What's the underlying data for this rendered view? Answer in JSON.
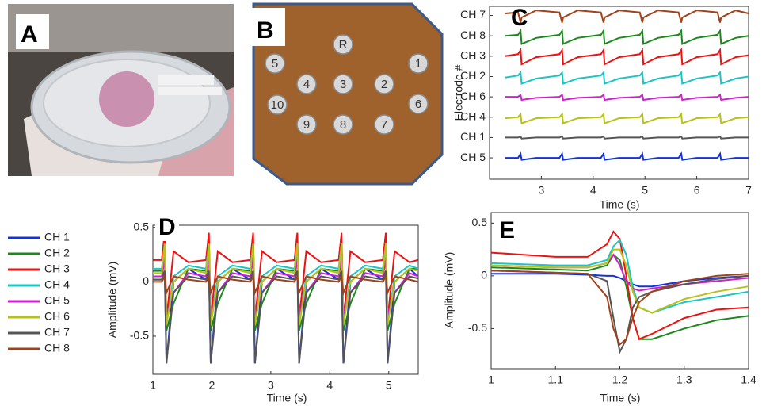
{
  "panel_labels": [
    "A",
    "B",
    "C",
    "D",
    "E"
  ],
  "electrodes": [
    "R",
    "5",
    "1",
    "4",
    "3",
    "2",
    "10",
    "6",
    "9",
    "8",
    "7"
  ],
  "chart_data": [
    {
      "type": "line",
      "xlabel": "Time (s)",
      "ylabel": "Electrode #",
      "x": [
        2.3,
        2.55,
        2.6,
        2.62,
        2.9,
        3.35,
        3.4,
        3.42,
        3.7,
        4.15,
        4.2,
        4.22,
        4.5,
        4.9,
        4.95,
        4.97,
        5.25,
        5.65,
        5.7,
        5.72,
        6.0,
        6.4,
        6.45,
        6.47,
        6.75,
        7.0
      ],
      "xlim": [
        2,
        7
      ],
      "xticks": [
        3,
        4,
        5,
        6,
        7
      ],
      "ylim": [
        -1.05,
        7.45
      ],
      "yticks": [
        {
          "value": 7,
          "label": "CH 7"
        },
        {
          "value": 6,
          "label": "CH 8"
        },
        {
          "value": 5,
          "label": "CH 3"
        },
        {
          "value": 4,
          "label": "CH 2"
        },
        {
          "value": 3,
          "label": "CH 6"
        },
        {
          "value": 2,
          "label": "CH 4"
        },
        {
          "value": 1,
          "label": "CH 1"
        },
        {
          "value": 0,
          "label": "CH 5"
        }
      ],
      "series": [
        {
          "color": "#a0421a",
          "values": [
            7.1,
            7.15,
            6.65,
            6.9,
            7.25,
            7.15,
            6.65,
            6.9,
            7.25,
            7.15,
            6.65,
            6.9,
            7.25,
            7.15,
            6.65,
            6.9,
            7.25,
            7.15,
            6.65,
            6.9,
            7.25,
            7.15,
            6.65,
            6.9,
            7.25,
            7.1
          ]
        },
        {
          "color": "#1a8a1a",
          "values": [
            6.0,
            6.05,
            6.25,
            5.6,
            5.9,
            6.05,
            6.25,
            5.6,
            5.9,
            6.05,
            6.25,
            5.6,
            5.9,
            6.05,
            6.25,
            5.6,
            5.9,
            6.05,
            6.25,
            5.6,
            5.9,
            6.05,
            6.25,
            5.6,
            5.9,
            6.0
          ]
        },
        {
          "color": "#ee1111",
          "values": [
            5.0,
            5.1,
            5.3,
            4.6,
            4.95,
            5.1,
            5.3,
            4.6,
            4.95,
            5.1,
            5.3,
            4.6,
            4.95,
            5.1,
            5.3,
            4.6,
            4.95,
            5.1,
            5.3,
            4.6,
            4.95,
            5.1,
            5.3,
            4.6,
            4.95,
            5.05
          ]
        },
        {
          "color": "#1cc4c4",
          "values": [
            3.95,
            4.05,
            4.2,
            3.65,
            3.9,
            4.05,
            4.2,
            3.65,
            3.9,
            4.05,
            4.2,
            3.65,
            3.9,
            4.05,
            4.2,
            3.65,
            3.9,
            4.05,
            4.2,
            3.65,
            3.9,
            4.05,
            4.2,
            3.65,
            3.9,
            4.0
          ]
        },
        {
          "color": "#cc22cc",
          "values": [
            3.0,
            3.0,
            3.1,
            2.85,
            2.95,
            3.0,
            3.1,
            2.85,
            2.95,
            3.0,
            3.1,
            2.85,
            2.95,
            3.0,
            3.1,
            2.85,
            2.95,
            3.0,
            3.1,
            2.85,
            2.95,
            3.0,
            3.1,
            2.85,
            2.95,
            3.0
          ]
        },
        {
          "color": "#b8c218",
          "values": [
            1.95,
            2.0,
            2.15,
            1.7,
            1.95,
            2.0,
            2.15,
            1.7,
            1.95,
            2.0,
            2.15,
            1.7,
            1.95,
            2.0,
            2.15,
            1.7,
            1.95,
            2.0,
            2.15,
            1.7,
            1.95,
            2.0,
            2.15,
            1.7,
            1.95,
            2.0
          ]
        },
        {
          "color": "#555555",
          "values": [
            1.0,
            1.0,
            1.05,
            0.95,
            1.0,
            1.0,
            1.05,
            0.95,
            1.0,
            1.0,
            1.05,
            0.95,
            1.0,
            1.0,
            1.05,
            0.95,
            1.0,
            1.0,
            1.05,
            0.95,
            1.0,
            1.0,
            1.05,
            0.95,
            1.0,
            1.0
          ]
        },
        {
          "color": "#1133dd",
          "values": [
            0.0,
            0.0,
            0.2,
            -0.1,
            0.0,
            0.0,
            0.2,
            -0.1,
            0.0,
            0.0,
            0.2,
            -0.1,
            0.0,
            0.0,
            0.2,
            -0.1,
            0.0,
            0.0,
            0.2,
            -0.1,
            0.0,
            0.0,
            0.2,
            -0.1,
            0.0,
            0.0
          ]
        }
      ]
    },
    {
      "type": "line",
      "xlabel": "Time (s)",
      "ylabel": "Amplitude (mV)",
      "x": [
        1.0,
        1.15,
        1.2,
        1.23,
        1.35,
        1.6,
        1.9,
        1.95,
        1.98,
        2.1,
        2.35,
        2.65,
        2.7,
        2.73,
        2.85,
        3.1,
        3.4,
        3.45,
        3.48,
        3.6,
        3.85,
        4.15,
        4.2,
        4.23,
        4.35,
        4.6,
        4.9,
        4.95,
        4.98,
        5.1,
        5.35,
        5.5
      ],
      "xlim": [
        1,
        5.5
      ],
      "xticks": [
        1,
        2,
        3,
        4,
        5
      ],
      "ylim": [
        -0.85,
        0.52
      ],
      "yticks": [
        -0.5,
        0,
        0.5
      ],
      "series": [
        {
          "name": "CH 1",
          "color": "#1133dd",
          "values": [
            0.02,
            0.02,
            0.1,
            -0.75,
            0.0,
            0.12,
            0.02,
            0.1,
            -0.75,
            0.0,
            0.12,
            0.02,
            0.1,
            -0.75,
            0.0,
            0.12,
            0.02,
            0.1,
            -0.75,
            0.0,
            0.12,
            0.02,
            0.1,
            -0.75,
            0.0,
            0.12,
            0.02,
            0.1,
            -0.75,
            0.0,
            0.12,
            0.05
          ]
        },
        {
          "name": "CH 2",
          "color": "#1a8a1a",
          "values": [
            0.1,
            0.1,
            0.3,
            -0.45,
            -0.2,
            0.12,
            0.1,
            0.3,
            -0.45,
            -0.2,
            0.12,
            0.1,
            0.3,
            -0.45,
            -0.2,
            0.12,
            0.1,
            0.3,
            -0.45,
            -0.2,
            0.12,
            0.1,
            0.3,
            -0.45,
            -0.2,
            0.12,
            0.1,
            0.3,
            -0.45,
            -0.2,
            0.12,
            0.12
          ]
        },
        {
          "name": "CH 3",
          "color": "#ee1111",
          "values": [
            0.2,
            0.2,
            0.45,
            -0.35,
            0.28,
            0.18,
            0.2,
            0.45,
            -0.35,
            0.28,
            0.18,
            0.2,
            0.45,
            -0.35,
            0.28,
            0.18,
            0.2,
            0.45,
            -0.35,
            0.28,
            0.18,
            0.2,
            0.45,
            -0.35,
            0.28,
            0.18,
            0.2,
            0.45,
            -0.35,
            0.28,
            0.18,
            0.2
          ]
        },
        {
          "name": "CH 4",
          "color": "#1cc4c4",
          "values": [
            0.12,
            0.12,
            0.35,
            -0.4,
            0.05,
            0.15,
            0.12,
            0.35,
            -0.4,
            0.05,
            0.15,
            0.12,
            0.35,
            -0.4,
            0.05,
            0.15,
            0.12,
            0.35,
            -0.4,
            0.05,
            0.15,
            0.12,
            0.35,
            -0.4,
            0.05,
            0.15,
            0.12,
            0.35,
            -0.4,
            0.05,
            0.15,
            0.12
          ]
        },
        {
          "name": "CH 5",
          "color": "#cc22cc",
          "values": [
            0.05,
            0.05,
            0.2,
            -0.3,
            -0.1,
            0.08,
            0.05,
            0.2,
            -0.3,
            -0.1,
            0.08,
            0.05,
            0.2,
            -0.3,
            -0.1,
            0.08,
            0.05,
            0.2,
            -0.3,
            -0.1,
            0.08,
            0.05,
            0.2,
            -0.3,
            -0.1,
            0.08,
            0.05,
            0.2,
            -0.3,
            -0.1,
            0.08,
            0.05
          ]
        },
        {
          "name": "CH 6",
          "color": "#b8c218",
          "values": [
            0.08,
            0.08,
            0.35,
            -0.4,
            0.0,
            0.12,
            0.08,
            0.35,
            -0.4,
            0.0,
            0.12,
            0.08,
            0.35,
            -0.4,
            0.0,
            0.12,
            0.08,
            0.35,
            -0.4,
            0.0,
            0.12,
            0.08,
            0.35,
            -0.4,
            0.0,
            0.12,
            0.08,
            0.35,
            -0.4,
            0.0,
            0.12,
            0.1
          ]
        },
        {
          "name": "CH 7",
          "color": "#555555",
          "values": [
            0.02,
            0.02,
            0.1,
            -0.75,
            -0.1,
            0.05,
            0.02,
            0.1,
            -0.75,
            -0.1,
            0.05,
            0.02,
            0.1,
            -0.75,
            -0.1,
            0.05,
            0.02,
            0.1,
            -0.75,
            -0.1,
            0.05,
            0.02,
            0.1,
            -0.75,
            -0.1,
            0.05,
            0.02,
            0.1,
            -0.75,
            -0.1,
            0.05,
            0.03
          ]
        },
        {
          "name": "CH 8",
          "color": "#a0421a",
          "values": [
            0.0,
            0.0,
            0.05,
            -0.1,
            0.05,
            0.02,
            0.0,
            0.05,
            -0.1,
            0.05,
            0.02,
            0.0,
            0.05,
            -0.1,
            0.05,
            0.02,
            0.0,
            0.05,
            -0.1,
            0.05,
            0.02,
            0.0,
            0.05,
            -0.1,
            0.05,
            0.02,
            0.0,
            0.05,
            -0.1,
            0.05,
            0.02,
            0.0
          ]
        }
      ]
    },
    {
      "type": "line",
      "xlabel": "Time (s)",
      "ylabel": "Amplitude (mV)",
      "x": [
        1,
        1.05,
        1.1,
        1.15,
        1.18,
        1.19,
        1.2,
        1.21,
        1.22,
        1.23,
        1.25,
        1.3,
        1.35,
        1.4
      ],
      "xlim": [
        1,
        1.4
      ],
      "xticks": [
        1,
        1.1,
        1.2,
        1.3,
        1.4
      ],
      "ylim": [
        -0.88,
        0.6
      ],
      "yticks": [
        -0.5,
        0,
        0.5
      ],
      "series": [
        {
          "color": "#1133dd",
          "values": [
            0.02,
            0.02,
            0.02,
            0.01,
            0,
            0,
            -0.02,
            -0.05,
            -0.08,
            -0.1,
            -0.1,
            -0.05,
            -0.02,
            0
          ]
        },
        {
          "color": "#1a8a1a",
          "values": [
            0.08,
            0.07,
            0.06,
            0.05,
            0.1,
            0.2,
            0.15,
            -0.1,
            -0.4,
            -0.6,
            -0.6,
            -0.5,
            -0.42,
            -0.38
          ]
        },
        {
          "color": "#ee1111",
          "values": [
            0.22,
            0.2,
            0.18,
            0.18,
            0.3,
            0.42,
            0.35,
            0,
            -0.4,
            -0.6,
            -0.55,
            -0.4,
            -0.32,
            -0.3
          ]
        },
        {
          "color": "#1cc4c4",
          "values": [
            0.12,
            0.11,
            0.1,
            0.1,
            0.15,
            0.28,
            0.34,
            0.2,
            -0.1,
            -0.3,
            -0.35,
            -0.25,
            -0.2,
            -0.15
          ]
        },
        {
          "color": "#cc22cc",
          "values": [
            0.1,
            0.09,
            0.08,
            0.08,
            0.12,
            0.2,
            0.1,
            -0.05,
            -0.12,
            -0.14,
            -0.12,
            -0.08,
            -0.05,
            -0.02
          ]
        },
        {
          "color": "#b8c218",
          "values": [
            0.1,
            0.09,
            0.08,
            0.08,
            0.12,
            0.25,
            0.25,
            0.1,
            -0.15,
            -0.3,
            -0.35,
            -0.22,
            -0.15,
            -0.1
          ]
        },
        {
          "color": "#555555",
          "values": [
            0.05,
            0.04,
            0.03,
            0.02,
            -0.05,
            -0.4,
            -0.72,
            -0.6,
            -0.3,
            -0.2,
            -0.15,
            -0.08,
            -0.03,
            0
          ]
        },
        {
          "color": "#a0421a",
          "values": [
            0.05,
            0.04,
            0.03,
            0.02,
            -0.2,
            -0.5,
            -0.65,
            -0.6,
            -0.4,
            -0.25,
            -0.15,
            -0.05,
            0,
            0.02
          ]
        }
      ]
    }
  ]
}
